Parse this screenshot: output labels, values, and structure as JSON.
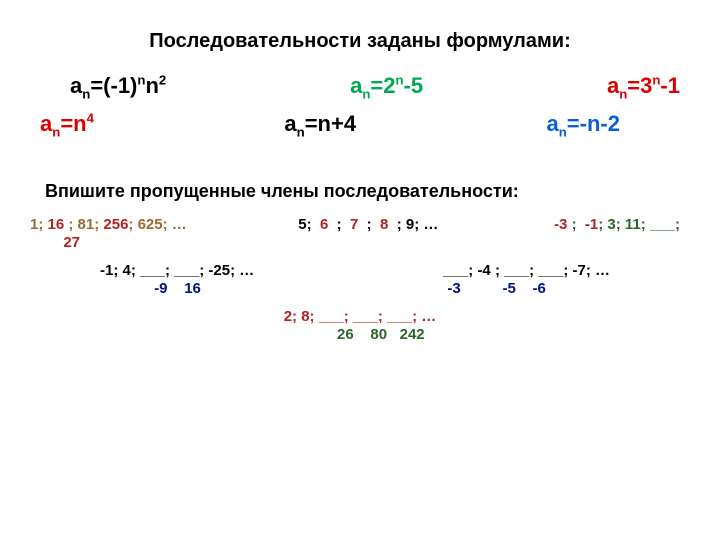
{
  "title": "Последовательности заданы формулами:",
  "formulas": {
    "f1": {
      "a": "a",
      "n": "n",
      "eq": "=(-1)",
      "exp1": "n",
      "mid": "n",
      "exp2": "2"
    },
    "f2": {
      "a": "a",
      "n": "n",
      "eq": "=2",
      "exp": "n",
      "tail": "-5"
    },
    "f3": {
      "a": "a",
      "n": "n",
      "eq": "=3",
      "exp": "n",
      "tail": "-1"
    },
    "f4": {
      "a": "a",
      "n": "n",
      "eq": "=n",
      "exp": "4"
    },
    "f5": {
      "a": "a",
      "n": "n",
      "eq": "=n+4"
    },
    "f6": {
      "a": "a",
      "n": "n",
      "eq": "=-n-2"
    }
  },
  "subtitle": "Впишите пропущенные члены последовательности:",
  "seq1": {
    "q": "1; ___; 81; ___; 625; …",
    "a1": "16",
    "a2": "256",
    "a3": "27",
    "colors": {
      "q": "#9c6a2f",
      "ans": "#b32222"
    }
  },
  "seq2": {
    "q": "5; ___; ___; ___; 9; …",
    "a1": "6",
    "a2": "7",
    "a3": "8",
    "colors": {
      "q": "#000000",
      "ans": "#b32222"
    }
  },
  "seq3": {
    "q": "___; ___; 3; 11; ___;",
    "a1": "-3",
    "a2": "-1",
    "colors": {
      "q": "#2a662a",
      "ans": "#b32222"
    }
  },
  "seq4": {
    "q": "-1; 4; ___; ___; -25; …",
    "a1": "-9",
    "a2": "16",
    "colors": {
      "q": "#000000",
      "ans": "#00137f"
    }
  },
  "seq5": {
    "q": "___; -4 ; ___; ___; -7; …",
    "a1": "-3",
    "a2": "-5",
    "a3": "-6",
    "colors": {
      "q": "#000000",
      "ans": "#00137f"
    }
  },
  "seq6": {
    "q": "2; 8; ___; ___; ___; …",
    "a1": "26",
    "a2": "80",
    "a3": "242",
    "colors": {
      "q": "#b32222",
      "ans": "#2a662a"
    }
  }
}
